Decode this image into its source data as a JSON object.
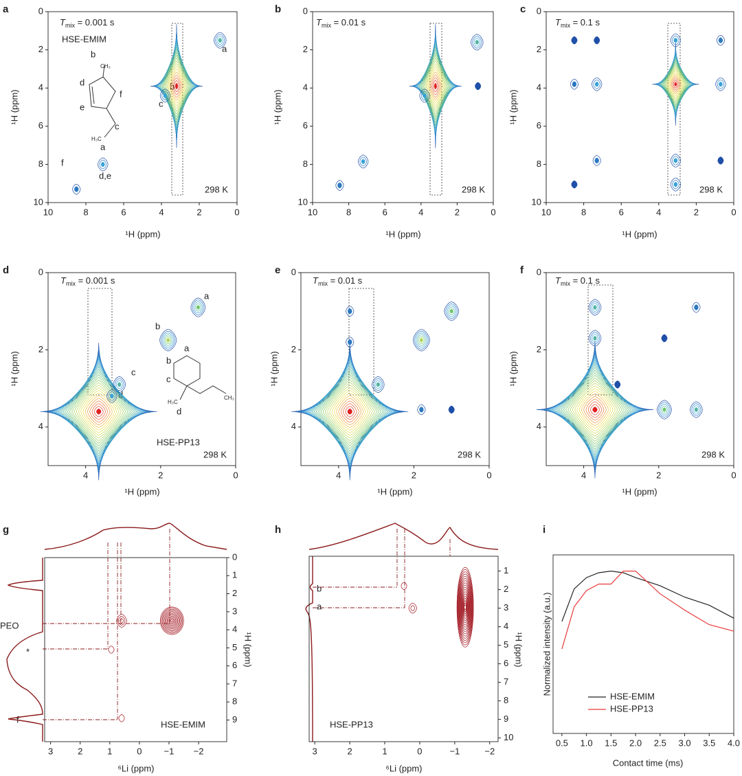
{
  "chart_data": [
    {
      "panel": "a",
      "type": "contour",
      "title": {
        "symbol": "T",
        "subscript": "mix",
        "text": " = 0.001 s"
      },
      "sample": "HSE-EMIM",
      "temperature": "298 K",
      "xlabel": "¹H (ppm)",
      "ylabel": "¹H (ppm)",
      "xlim": [
        10,
        0
      ],
      "ylim": [
        0,
        10
      ],
      "xticks": [
        10,
        8,
        6,
        4,
        2,
        0
      ],
      "yticks": [
        0,
        2,
        4,
        6,
        8,
        10
      ],
      "x": [
        0.9,
        3.2,
        3.8,
        7.1,
        8.5
      ],
      "y": [
        1.5,
        3.9,
        4.4,
        8.0,
        9.3
      ],
      "levels": [
        4,
        22,
        3,
        3,
        2
      ],
      "annotations": [
        "a",
        "b",
        "c",
        "d,e",
        "f"
      ],
      "structure_labels": [
        "b",
        "CH₃",
        "d",
        "f",
        "e",
        "c",
        "H₃C",
        "a"
      ],
      "colors": [
        "#1f4fa8",
        "#39a3d9",
        "#6cc56a",
        "#f2e24a",
        "#e02020"
      ]
    },
    {
      "panel": "b",
      "type": "contour",
      "title": {
        "symbol": "T",
        "subscript": "mix",
        "text": " = 0.01 s"
      },
      "temperature": "298 K",
      "xlabel": "¹H (ppm)",
      "ylabel": "¹H (ppm)",
      "xlim": [
        10,
        0
      ],
      "ylim": [
        0,
        10
      ],
      "xticks": [
        10,
        8,
        6,
        4,
        2,
        0
      ],
      "yticks": [
        0,
        2,
        4,
        6,
        8,
        10
      ],
      "x": [
        0.9,
        3.2,
        3.8,
        7.2,
        8.5,
        0.85
      ],
      "y": [
        1.6,
        3.9,
        4.4,
        7.85,
        9.1,
        3.9
      ],
      "levels": [
        4,
        22,
        3,
        3,
        2,
        1
      ],
      "colors": [
        "#1f4fa8",
        "#39a3d9",
        "#6cc56a",
        "#f2e24a",
        "#e02020"
      ]
    },
    {
      "panel": "c",
      "type": "contour",
      "title": {
        "symbol": "T",
        "subscript": "mix",
        "text": " = 0.1 s"
      },
      "temperature": "298 K",
      "xlabel": "¹H (ppm)",
      "ylabel": "¹H (ppm)",
      "xlim": [
        10,
        0
      ],
      "ylim": [
        0,
        10
      ],
      "xticks": [
        10,
        8,
        6,
        4,
        2,
        0
      ],
      "yticks": [
        0,
        2,
        4,
        6,
        8,
        10
      ],
      "x": [
        0.7,
        0.7,
        0.7,
        3.1,
        3.1,
        3.1,
        3.1,
        7.3,
        7.3,
        7.3,
        8.5,
        8.5,
        8.5
      ],
      "y": [
        1.5,
        3.8,
        7.8,
        1.5,
        3.8,
        7.8,
        9.05,
        1.5,
        3.8,
        7.8,
        1.5,
        3.8,
        9.05
      ],
      "levels": [
        2,
        3,
        1,
        3,
        22,
        3,
        3,
        1,
        3,
        2,
        1,
        2,
        1
      ],
      "colors": [
        "#1f4fa8",
        "#39a3d9",
        "#6cc56a",
        "#f2e24a",
        "#e02020"
      ]
    },
    {
      "panel": "d",
      "type": "contour",
      "title": {
        "symbol": "T",
        "subscript": "mix",
        "text": " = 0.001 s"
      },
      "sample": "HSE-PP13",
      "temperature": "298 K",
      "xlabel": "¹H (ppm)",
      "ylabel": "¹H (ppm)",
      "xlim": [
        5,
        0
      ],
      "ylim": [
        0,
        5
      ],
      "xticks": [
        4,
        2,
        0
      ],
      "yticks": [
        0,
        2,
        4
      ],
      "x": [
        3.65,
        1.0,
        1.8,
        3.1,
        3.3
      ],
      "y": [
        3.6,
        0.9,
        1.75,
        2.9,
        3.2
      ],
      "levels": [
        26,
        5,
        6,
        4,
        3
      ],
      "annotations": [
        "a",
        "b",
        "c",
        "d"
      ],
      "structure_labels": [
        "a",
        "b",
        "c",
        "d",
        "H₃C",
        "CH₃"
      ],
      "colors": [
        "#1f4fa8",
        "#39a3d9",
        "#6cc56a",
        "#f2e24a",
        "#e02020"
      ]
    },
    {
      "panel": "e",
      "type": "contour",
      "title": {
        "symbol": "T",
        "subscript": "mix",
        "text": " = 0.01 s"
      },
      "temperature": "298 K",
      "xlabel": "¹H (ppm)",
      "ylabel": "¹H (ppm)",
      "xlim": [
        5,
        0
      ],
      "ylim": [
        0,
        5
      ],
      "xticks": [
        4,
        2,
        0
      ],
      "yticks": [
        0,
        2,
        4
      ],
      "x": [
        3.7,
        1.0,
        1.8,
        2.95,
        1.8,
        1.0,
        3.7,
        3.7
      ],
      "y": [
        3.6,
        1.0,
        1.75,
        2.9,
        3.55,
        3.55,
        1.0,
        1.8
      ],
      "levels": [
        26,
        5,
        6,
        4,
        2,
        1,
        2,
        2
      ],
      "colors": [
        "#1f4fa8",
        "#39a3d9",
        "#6cc56a",
        "#f2e24a",
        "#e02020"
      ]
    },
    {
      "panel": "f",
      "type": "contour",
      "title": {
        "symbol": "T",
        "subscript": "mix",
        "text": " = 0.1 s"
      },
      "temperature": "298 K",
      "xlabel": "¹H (ppm)",
      "ylabel": "¹H (ppm)",
      "xlim": [
        5,
        0
      ],
      "ylim": [
        0,
        5
      ],
      "xticks": [
        4,
        2,
        0
      ],
      "yticks": [
        0,
        2,
        4
      ],
      "x": [
        3.7,
        3.7,
        3.7,
        1.85,
        1.0,
        1.0,
        1.85,
        3.1
      ],
      "y": [
        3.55,
        0.9,
        1.7,
        3.55,
        3.55,
        0.9,
        1.7,
        2.9
      ],
      "levels": [
        26,
        4,
        4,
        5,
        4,
        2,
        1,
        1
      ],
      "colors": [
        "#1f4fa8",
        "#39a3d9",
        "#6cc56a",
        "#f2e24a",
        "#e02020"
      ]
    },
    {
      "panel": "g",
      "type": "contour",
      "sample": "HSE-EMIM",
      "xlabel": "⁶Li (ppm)",
      "ylabel": "¹H (ppm)",
      "yaxis_side": "right",
      "xlim": [
        3.2,
        -2.95
      ],
      "ylim": [
        0,
        10.2
      ],
      "xticks": [
        3,
        2,
        1,
        0,
        {
          "value": -1,
          "label": "−1"
        },
        {
          "value": -2,
          "label": "−2"
        }
      ],
      "yticks": [
        0,
        1,
        2,
        3,
        4,
        5,
        6,
        7,
        8,
        9
      ],
      "x": [
        -1.1,
        0.6,
        0.95,
        0.6
      ],
      "y": [
        3.5,
        3.5,
        5.1,
        8.9
      ],
      "levels": [
        12,
        3,
        1,
        1
      ],
      "annotations": [
        "PEO",
        "*",
        "f"
      ],
      "color": "#a0141e"
    },
    {
      "panel": "h",
      "type": "contour",
      "sample": "HSE-PP13",
      "xlabel": "⁶Li (ppm)",
      "ylabel": "¹H (ppm)",
      "yaxis_side": "right",
      "xlim": [
        3.16,
        -2.24
      ],
      "ylim": [
        0.2,
        10.2
      ],
      "xticks": [
        3,
        2,
        1,
        0,
        {
          "value": -1,
          "label": "−1"
        },
        {
          "value": -2,
          "label": "−2"
        }
      ],
      "yticks": [
        1,
        2,
        3,
        4,
        5,
        6,
        7,
        8,
        9,
        10
      ],
      "x": [
        -1.3,
        0.2,
        0.45
      ],
      "y": [
        2.95,
        3.0,
        1.8
      ],
      "levels": [
        18,
        2,
        1
      ],
      "annotations": [
        "b",
        "a"
      ],
      "color": "#a0141e"
    },
    {
      "panel": "i",
      "type": "line",
      "xlabel": "Contact time (ms)",
      "ylabel": "Normalized intensity (a.u.)",
      "xlim": [
        0.32,
        4.0
      ],
      "ylim": [
        0,
        1.1
      ],
      "xticks": [
        0.5,
        {
          "value": 1,
          "label": "1.0"
        },
        1.5,
        {
          "value": 2,
          "label": "2.0"
        },
        2.5,
        {
          "value": 3,
          "label": "3.0"
        },
        3.5,
        {
          "value": 4,
          "label": "4.0"
        }
      ],
      "x": [
        0.5,
        0.75,
        1.0,
        1.25,
        1.5,
        1.75,
        2.0,
        2.5,
        3.0,
        3.5,
        4.0
      ],
      "series": [
        {
          "name": "HSE-EMIM",
          "color": "#222222",
          "values": [
            0.69,
            0.89,
            0.96,
            0.99,
            1.0,
            0.99,
            0.96,
            0.91,
            0.84,
            0.79,
            0.71
          ]
        },
        {
          "name": "HSE-PP13",
          "color": "#e8393b",
          "values": [
            0.52,
            0.78,
            0.88,
            0.92,
            0.92,
            1.0,
            1.0,
            0.86,
            0.76,
            0.67,
            0.63
          ]
        }
      ]
    }
  ]
}
